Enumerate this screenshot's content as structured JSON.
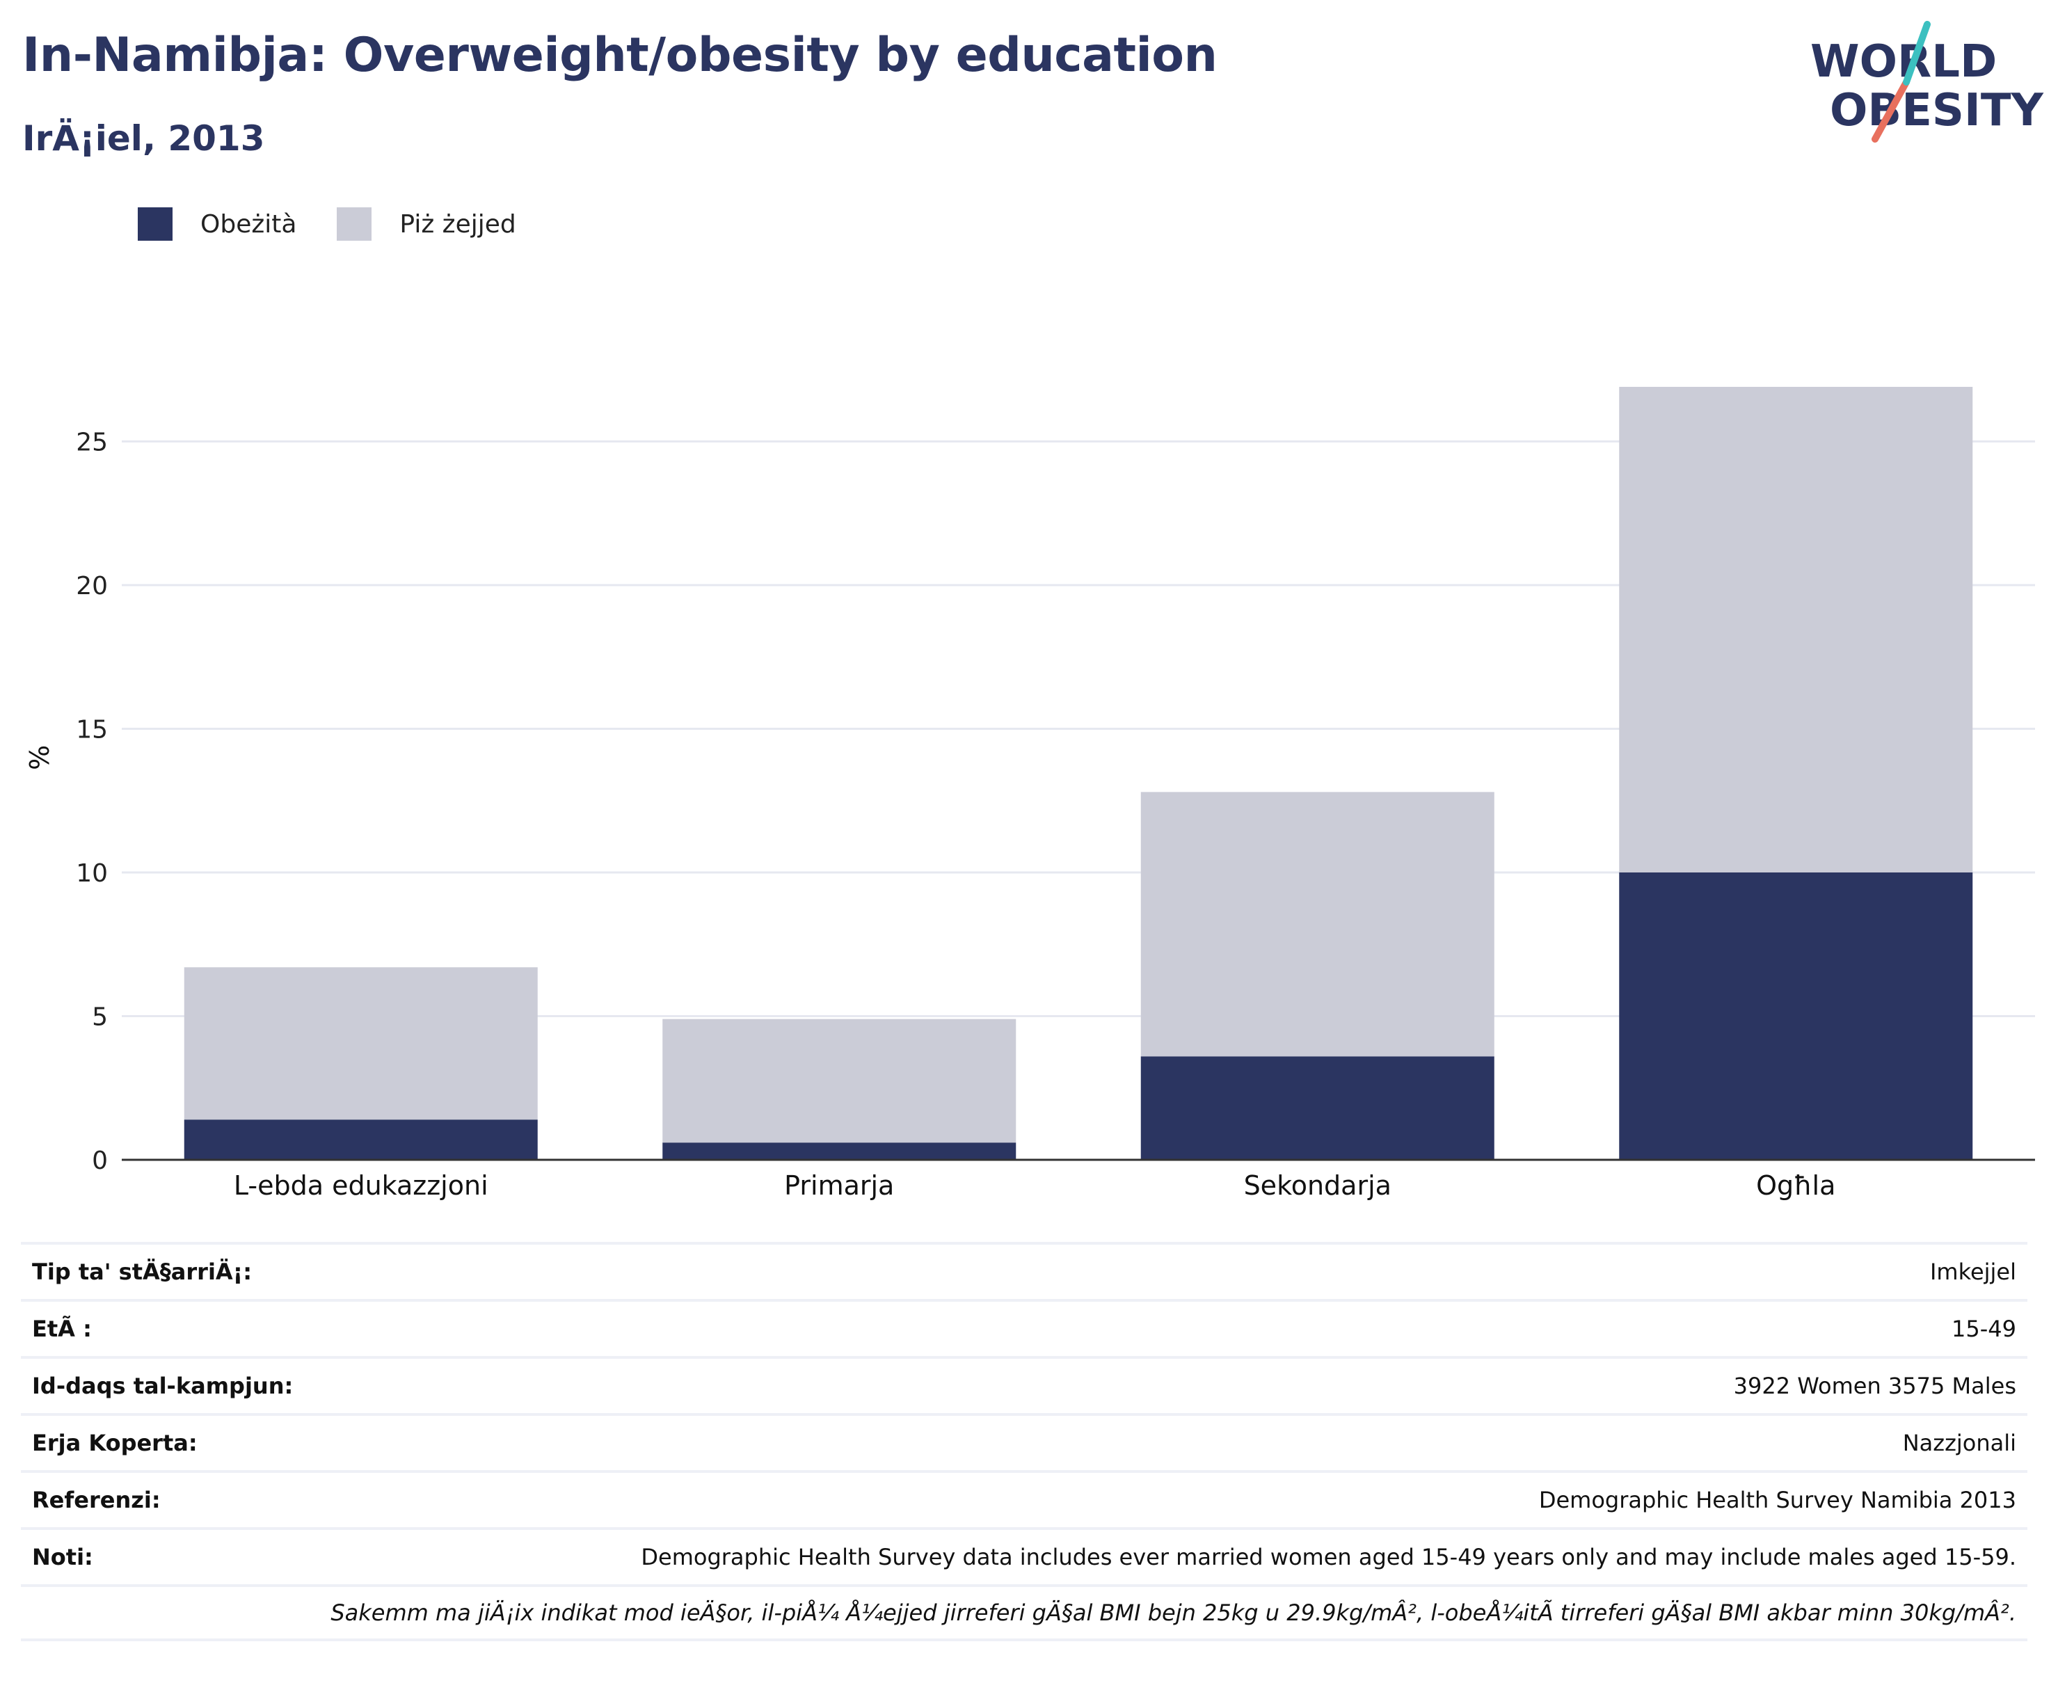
{
  "header": {
    "title": "In-Namibja: Overweight/obesity by education",
    "subtitle": "IrÄ¡iel, 2013"
  },
  "logo": {
    "line1": "WORLD",
    "line2": "OBESITY"
  },
  "legend": [
    {
      "label": "Obeżità",
      "color": "#2b3561"
    },
    {
      "label": "Piż żejjed",
      "color": "#cbccd7"
    }
  ],
  "chart_data": {
    "type": "bar",
    "stacked": true,
    "categories": [
      "L-ebda edukazzjoni",
      "Primarja",
      "Sekondarja",
      "Ogħla"
    ],
    "series": [
      {
        "name": "Obeżità",
        "color": "#2b3561",
        "values": [
          1.4,
          0.6,
          3.6,
          10.0
        ]
      },
      {
        "name": "Piż żejjed",
        "color": "#cbccd7",
        "values": [
          5.3,
          4.3,
          9.2,
          16.9
        ]
      }
    ],
    "ylabel": "%",
    "ylim": [
      0,
      28
    ],
    "yticks": [
      0,
      5,
      10,
      15,
      20,
      25
    ],
    "grid": true
  },
  "info": [
    {
      "key": "Tip ta' stÄ§arriÄ¡:",
      "value": "Imkejjel"
    },
    {
      "key": "EtÃ :",
      "value": "15-49"
    },
    {
      "key": "Id-daqs tal-kampjun:",
      "value": "3922 Women 3575 Males"
    },
    {
      "key": "Erja Koperta:",
      "value": "Nazzjonali"
    },
    {
      "key": "Referenzi:",
      "value": "Demographic Health Survey Namibia 2013"
    },
    {
      "key": "Noti:",
      "value": "Demographic Health Survey data includes ever married women aged 15-49 years only and may include males aged 15-59."
    },
    {
      "key": "",
      "value": "Sakemm ma jiÄ¡ix indikat mod ieÄ§or, il-piÅ¼ Å¼ejjed jirreferi gÄ§al BMI bejn 25kg u 29.9kg/mÂ², l-obeÅ¼itÃ  tirreferi gÄ§al BMI akbar minn 30kg/mÂ²."
    }
  ]
}
